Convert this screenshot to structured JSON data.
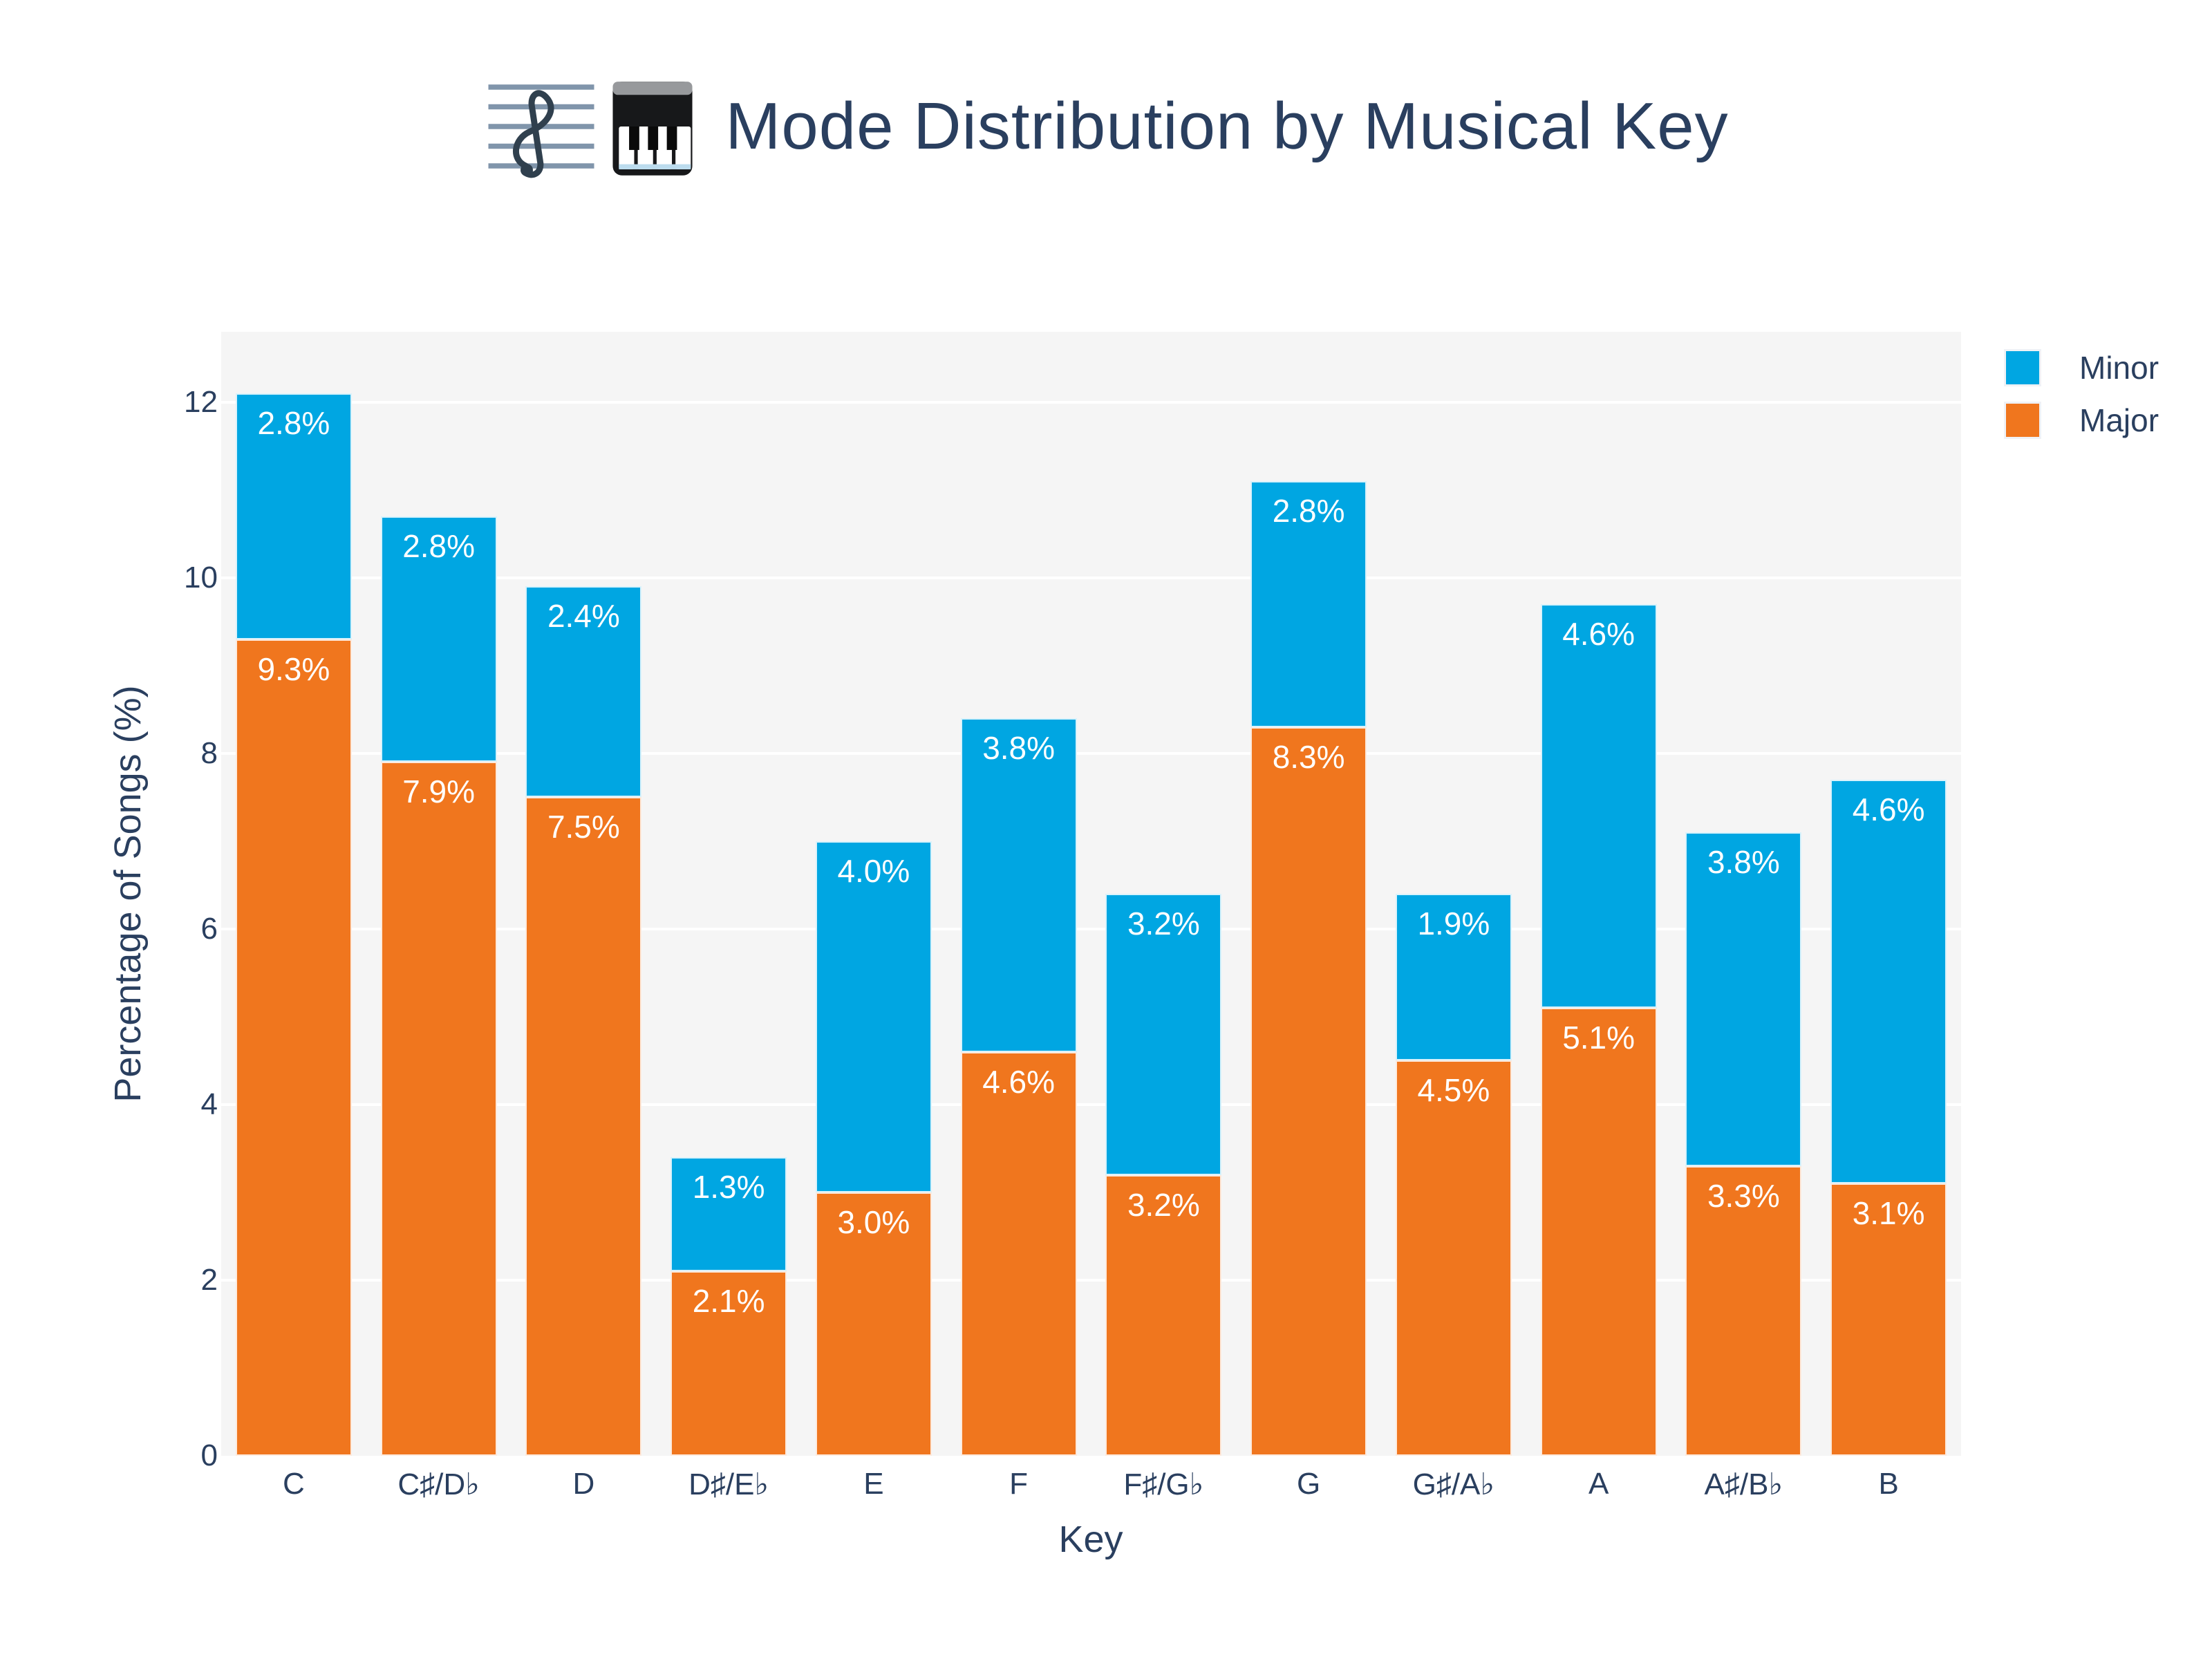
{
  "page": {
    "background": "#FFFFFF",
    "text_color": "#2A3F5F",
    "plot_background": "#F5F5F5"
  },
  "title": {
    "text": "Mode Distribution by Musical Key",
    "icons": [
      "musical-score",
      "piano-keyboard"
    ]
  },
  "legend": {
    "position": "top-right",
    "items": [
      {
        "label": "Minor",
        "color": "#00A6E2"
      },
      {
        "label": "Major",
        "color": "#F0761E"
      }
    ]
  },
  "chart_data": {
    "type": "bar",
    "stacked": true,
    "title": "Mode Distribution by Musical Key",
    "xlabel": "Key",
    "ylabel": "Percentage of Songs (%)",
    "categories": [
      "C",
      "C♯/D♭",
      "D",
      "D♯/E♭",
      "E",
      "F",
      "F♯/G♭",
      "G",
      "G♯/A♭",
      "A",
      "A♯/B♭",
      "B"
    ],
    "series": [
      {
        "name": "Major",
        "color": "#F0761E",
        "values": [
          9.3,
          7.9,
          7.5,
          2.1,
          3.0,
          4.6,
          3.2,
          8.3,
          4.5,
          5.1,
          3.3,
          3.1
        ],
        "labels": [
          "9.3%",
          "7.9%",
          "7.5%",
          "2.1%",
          "3.0%",
          "4.6%",
          "3.2%",
          "8.3%",
          "4.5%",
          "5.1%",
          "3.3%",
          "3.1%"
        ]
      },
      {
        "name": "Minor",
        "color": "#00A6E2",
        "values": [
          2.8,
          2.8,
          2.4,
          1.3,
          4.0,
          3.8,
          3.2,
          2.8,
          1.9,
          4.6,
          3.8,
          4.6
        ],
        "labels": [
          "2.8%",
          "2.8%",
          "2.4%",
          "1.3%",
          "4.0%",
          "3.8%",
          "3.2%",
          "2.8%",
          "1.9%",
          "4.6%",
          "3.8%",
          "4.6%"
        ]
      }
    ],
    "stack_order_bottom_to_top": [
      "Major",
      "Minor"
    ],
    "totals": [
      12.1,
      10.7,
      9.9,
      3.4,
      7.0,
      8.4,
      6.4,
      11.1,
      6.4,
      9.7,
      7.1,
      7.7
    ],
    "yticks": [
      0,
      2,
      4,
      6,
      8,
      10,
      12
    ],
    "ytick_labels": [
      "0",
      "2",
      "4",
      "6",
      "8",
      "10",
      "12"
    ],
    "ylim": [
      0,
      12.8
    ],
    "grid": true,
    "grid_color": "#FFFFFF",
    "bar_gap_fraction": 0.2,
    "bar_label_color": "#FFFFFF",
    "legend_position": "top-right"
  }
}
